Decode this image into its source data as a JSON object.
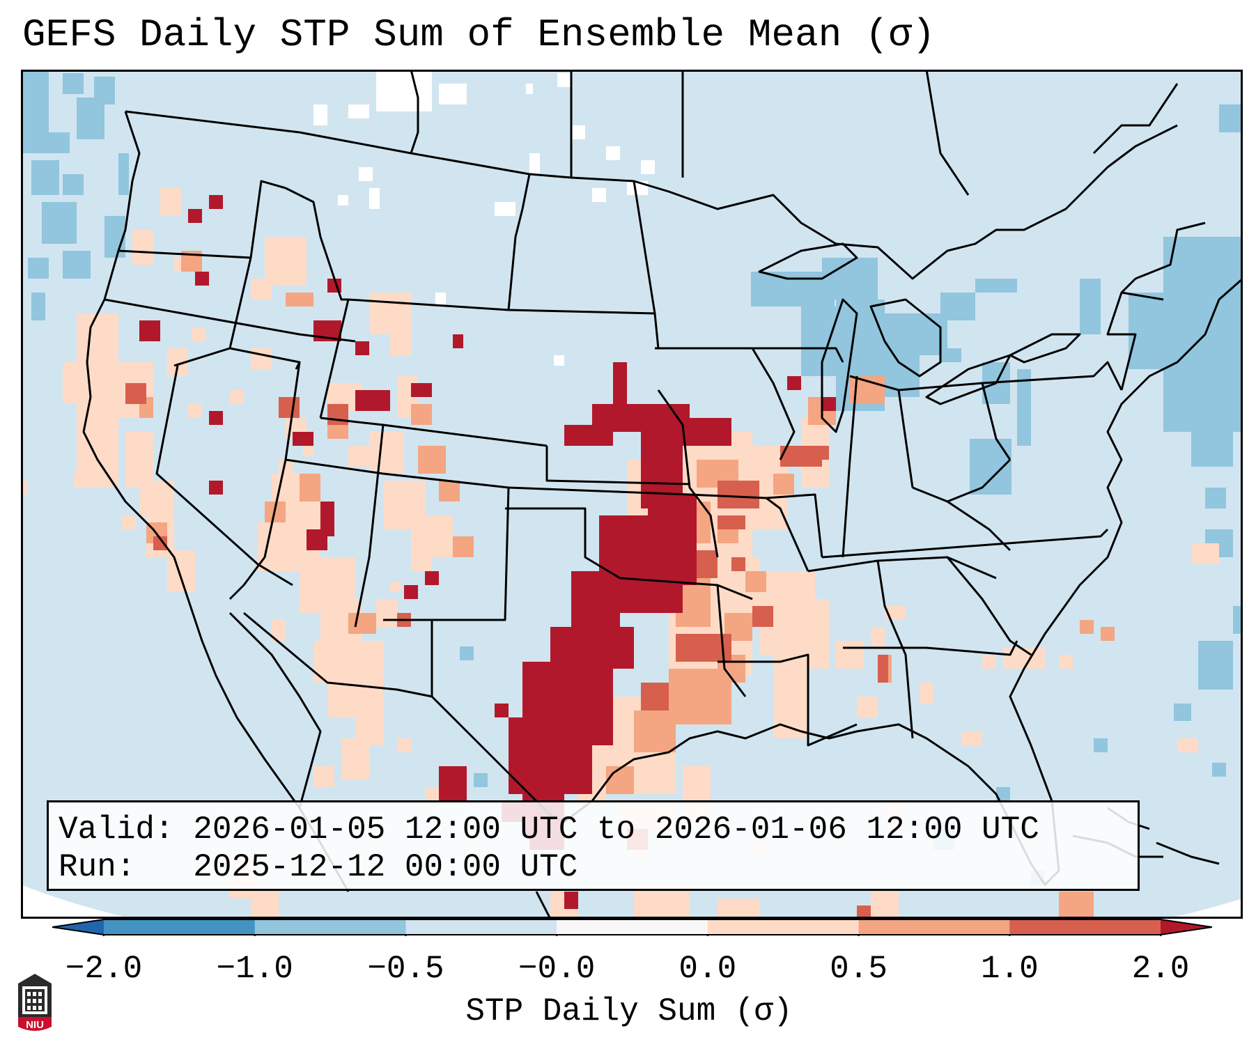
{
  "title": "GEFS Daily STP Sum of Ensemble Mean (σ)",
  "valid_label": "Valid:",
  "valid_value": "2026-01-05 12:00 UTC to 2026-01-06 12:00 UTC",
  "run_label": "Run:",
  "run_value": "2025-12-12 00:00 UTC",
  "colorbar": {
    "label": "STP Daily Sum (σ)",
    "ticks": [
      "−2.0",
      "−1.0",
      "−0.5",
      "−0.0",
      "0.0",
      "0.5",
      "1.0",
      "2.0"
    ],
    "colors": [
      "#2166ac",
      "#4393c3",
      "#92c5de",
      "#d1e5f0",
      "#f7f7f7",
      "#fddbc7",
      "#f4a582",
      "#d6604d",
      "#b2182b"
    ]
  },
  "logo": {
    "text": "NIU"
  },
  "legend_colors": {
    "background": "#d1e5f0",
    "light_negative": "#92c5de",
    "light_positive": "#fddbc7",
    "mid_positive": "#f4a582",
    "strong_positive": "#d6604d",
    "max_positive": "#b2182b"
  }
}
